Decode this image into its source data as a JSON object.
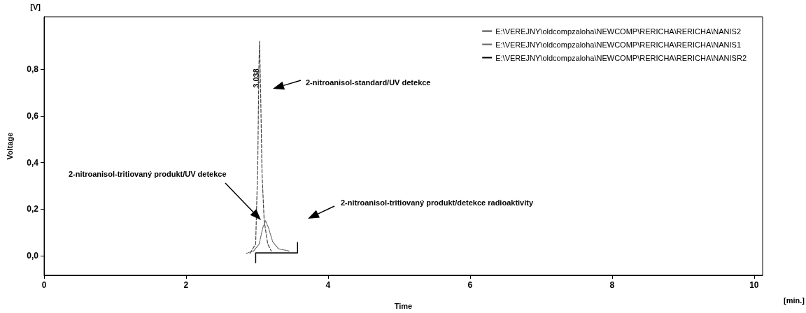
{
  "chart_data": {
    "type": "line",
    "xlabel": "Time",
    "ylabel": "Voltage",
    "xlim": [
      0,
      10.12
    ],
    "ylim": [
      -0.084,
      1.025
    ],
    "xticks": [
      0,
      2,
      4,
      6,
      8,
      10
    ],
    "yticks": [
      {
        "value": 0,
        "label": "0,0"
      },
      {
        "value": 0.2,
        "label": "0,2"
      },
      {
        "value": 0.4,
        "label": "0,4"
      },
      {
        "value": 0.6,
        "label": "0,6"
      },
      {
        "value": 0.8,
        "label": "0,8"
      }
    ],
    "grid": false,
    "legend": "top right",
    "marker": "none",
    "series": [
      {
        "name": "E:\\VEREJNY\\oldcompzaloha\\NEWCOMP\\RERICHA\\RERICHA\\NANIS2",
        "color": "#444444",
        "line_style": "dashed",
        "x": [
          2.9,
          2.98,
          3.01,
          3.025,
          3.035,
          3.05,
          3.07,
          3.1,
          3.15,
          3.2
        ],
        "values": [
          0.01,
          0.05,
          0.4,
          0.8,
          0.92,
          0.7,
          0.35,
          0.15,
          0.05,
          0.02
        ]
      },
      {
        "name": "E:\\VEREJNY\\oldcompzaloha\\NEWCOMP\\RERICHA\\RERICHA\\NANIS1",
        "color": "#666666",
        "line_style": "dotted",
        "x": [
          2.85,
          2.95,
          3.03,
          3.08,
          3.12,
          3.16,
          3.22,
          3.3,
          3.45
        ],
        "values": [
          0.01,
          0.02,
          0.05,
          0.12,
          0.15,
          0.12,
          0.06,
          0.03,
          0.02
        ]
      },
      {
        "name": "E:\\VEREJNY\\oldcompzaloha\\NEWCOMP\\RERICHA\\RERICHA\\NANISR2",
        "color": "#000000",
        "line_style": "solid",
        "x": [
          2.98,
          2.98,
          3.57,
          3.57
        ],
        "values": [
          -0.03,
          0.012,
          0.012,
          0.057
        ]
      }
    ],
    "annotations": [
      "3,038",
      "2-nitroanisol-standard/UV detekce",
      "2-nitroanisol-tritiovaný produkt/UV detekce",
      "2-nitroanisol-tritiovaný produkt/detekce radioaktivity",
      "[V]",
      "[min.]"
    ]
  }
}
